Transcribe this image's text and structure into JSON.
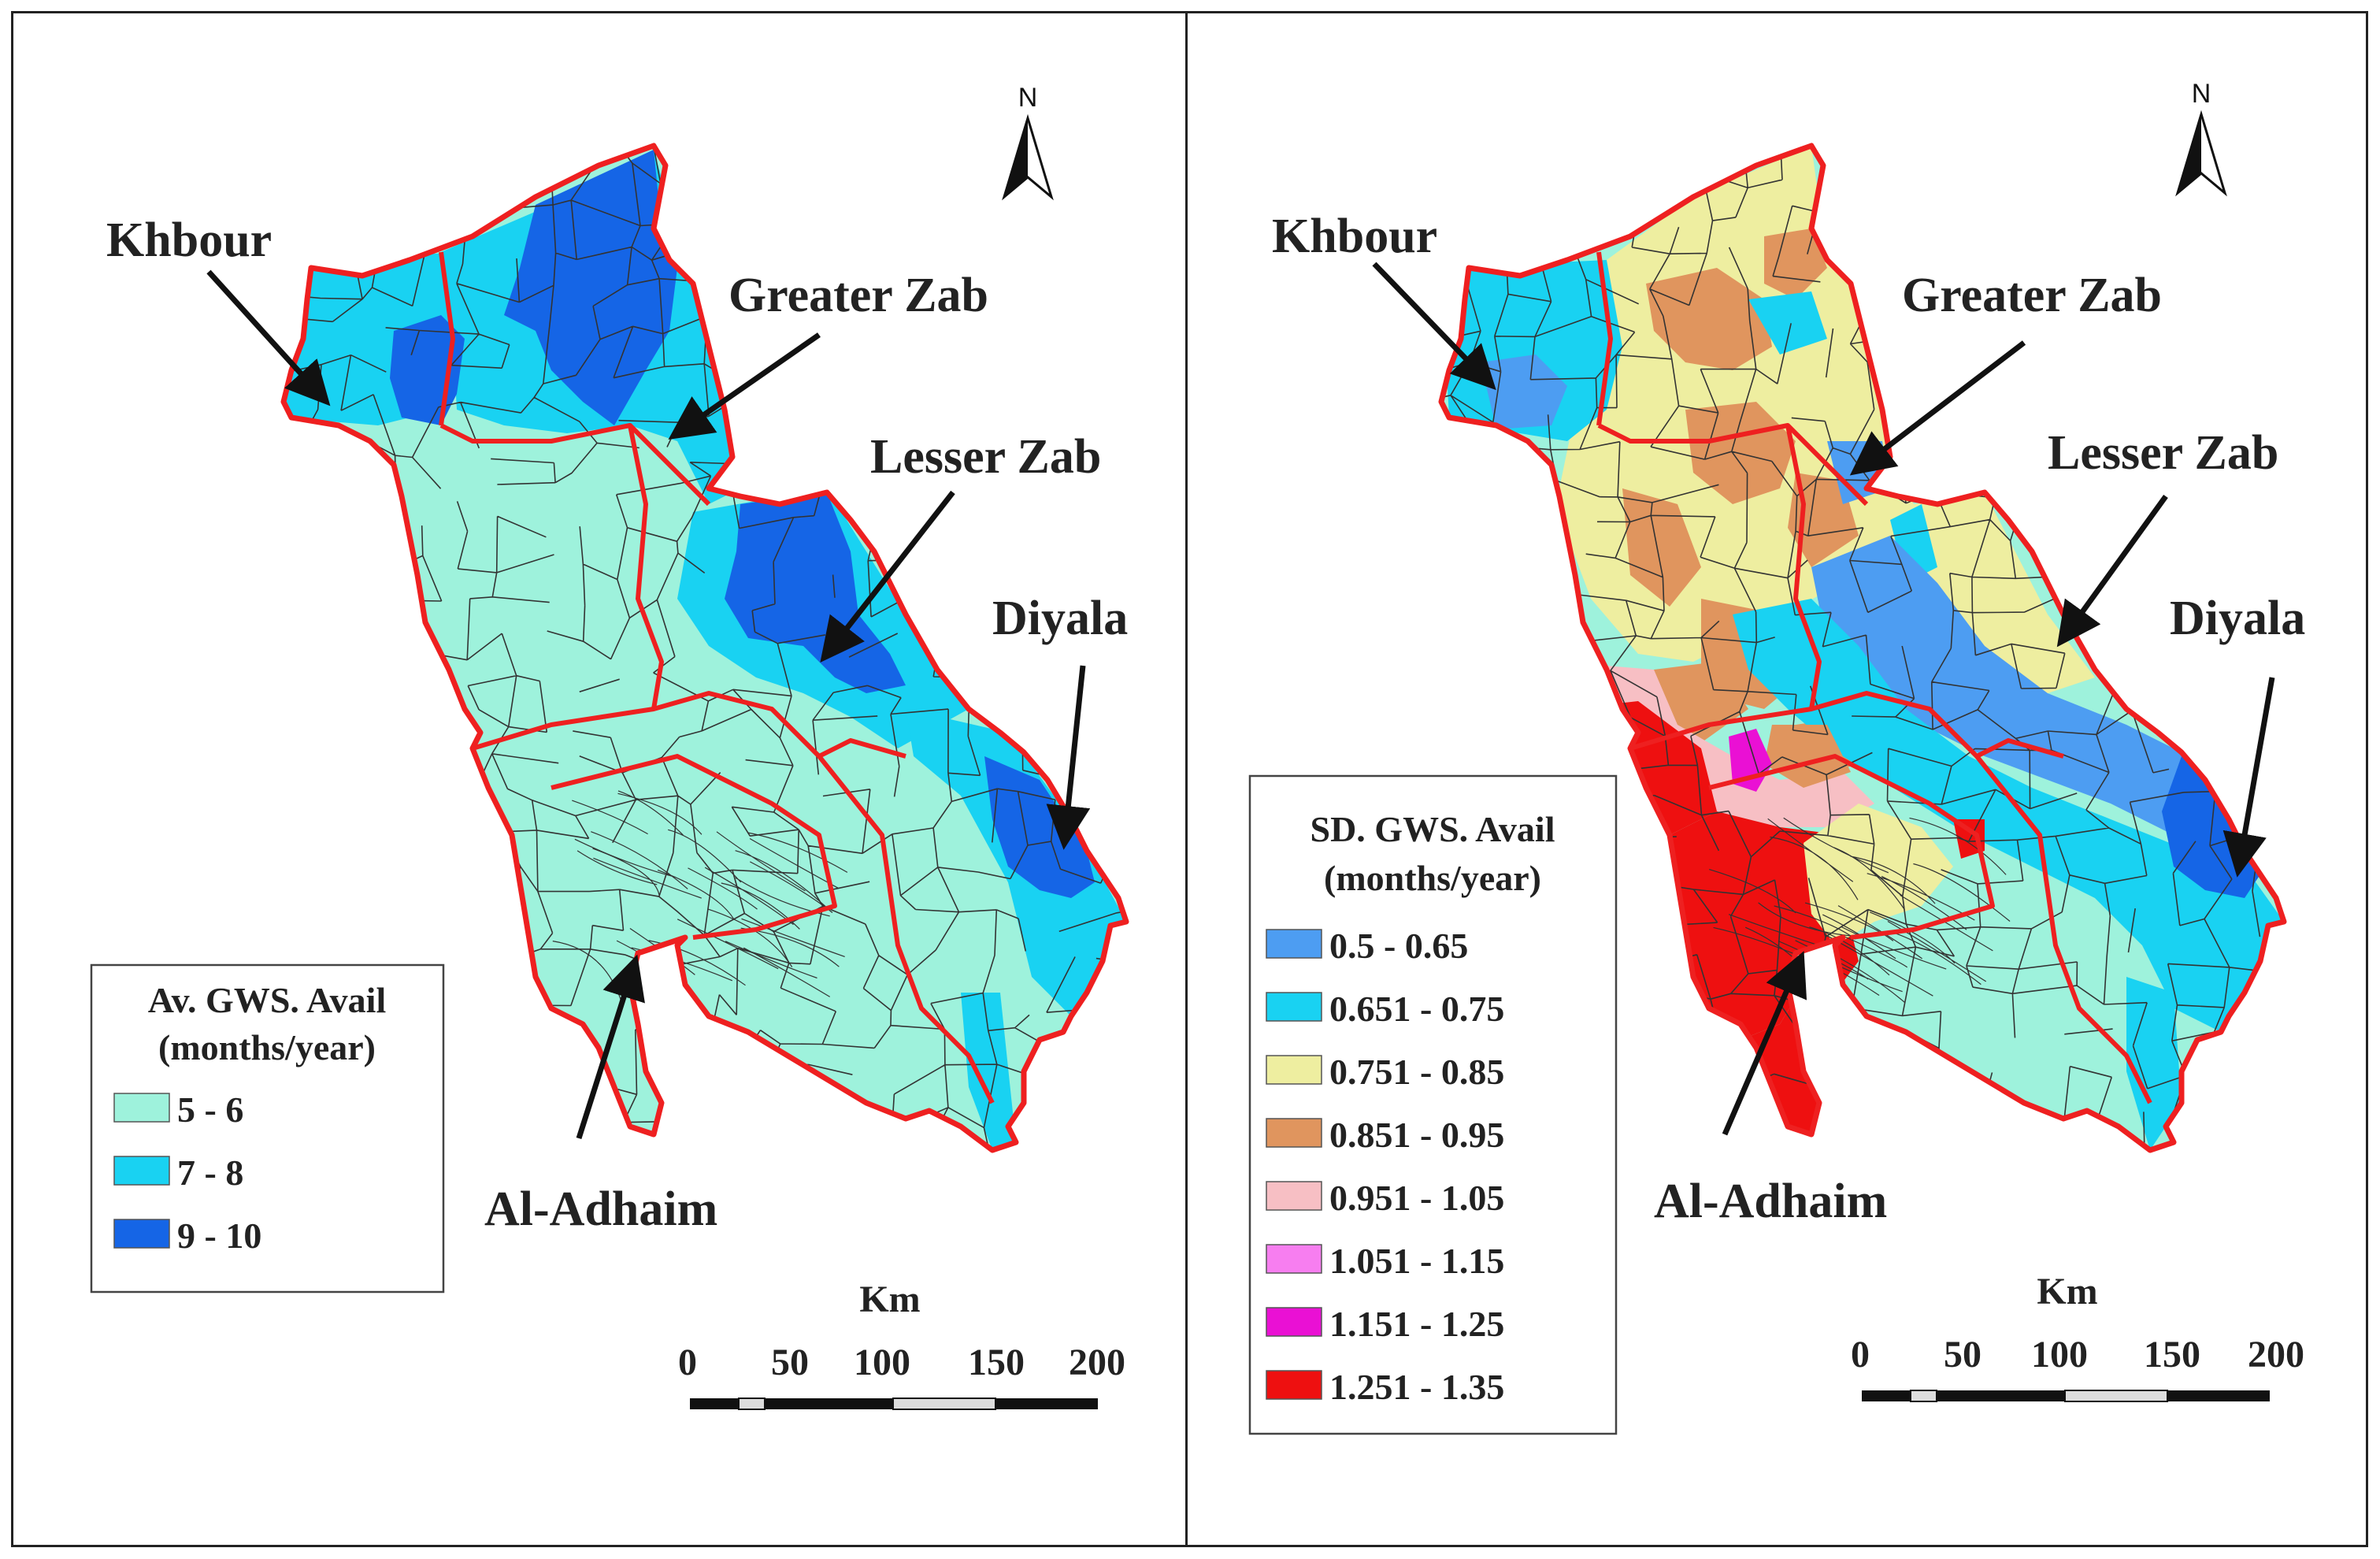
{
  "maps": [
    {
      "id": "left",
      "legend": {
        "title_line1": "Av. GWS. Avail",
        "title_line2": "(months/year)",
        "classes": [
          {
            "label": "5 - 6",
            "color": "#9ef2dc"
          },
          {
            "label": "7 - 8",
            "color": "#19d2f2"
          },
          {
            "label": "9 - 10",
            "color": "#1565e6"
          }
        ]
      },
      "labels": {
        "khbour": "Khbour",
        "greater_zab": "Greater Zab",
        "lesser_zab": "Lesser Zab",
        "diyala": "Diyala",
        "al_adhaim": "Al-Adhaim"
      },
      "north": "N",
      "scale": {
        "unit": "Km",
        "ticks": [
          "0",
          "50",
          "100",
          "150",
          "200"
        ]
      }
    },
    {
      "id": "right",
      "legend": {
        "title_line1": "SD. GWS. Avail",
        "title_line2": "(months/year)",
        "classes": [
          {
            "label": "0.5 - 0.65",
            "color": "#4d9df2"
          },
          {
            "label": "0.651 - 0.75",
            "color": "#19d2f2"
          },
          {
            "label": "0.751 - 0.85",
            "color": "#eeeea0"
          },
          {
            "label": "0.851 - 0.95",
            "color": "#e0955e"
          },
          {
            "label": "0.951 - 1.05",
            "color": "#f7bfc4"
          },
          {
            "label": "1.051 - 1.15",
            "color": "#f77ef0"
          },
          {
            "label": "1.151 - 1.25",
            "color": "#ea10d4"
          },
          {
            "label": "1.251 - 1.35",
            "color": "#ee1010"
          }
        ]
      },
      "labels": {
        "khbour": "Khbour",
        "greater_zab": "Greater Zab",
        "lesser_zab": "Lesser Zab",
        "diyala": "Diyala",
        "al_adhaim": "Al-Adhaim"
      },
      "north": "N",
      "scale": {
        "unit": "Km",
        "ticks": [
          "0",
          "50",
          "100",
          "150",
          "200"
        ]
      }
    }
  ],
  "colors": {
    "basin_outline": "#ee2020",
    "subbasin_line": "#333333",
    "base_fill": "#9ef2dc"
  }
}
